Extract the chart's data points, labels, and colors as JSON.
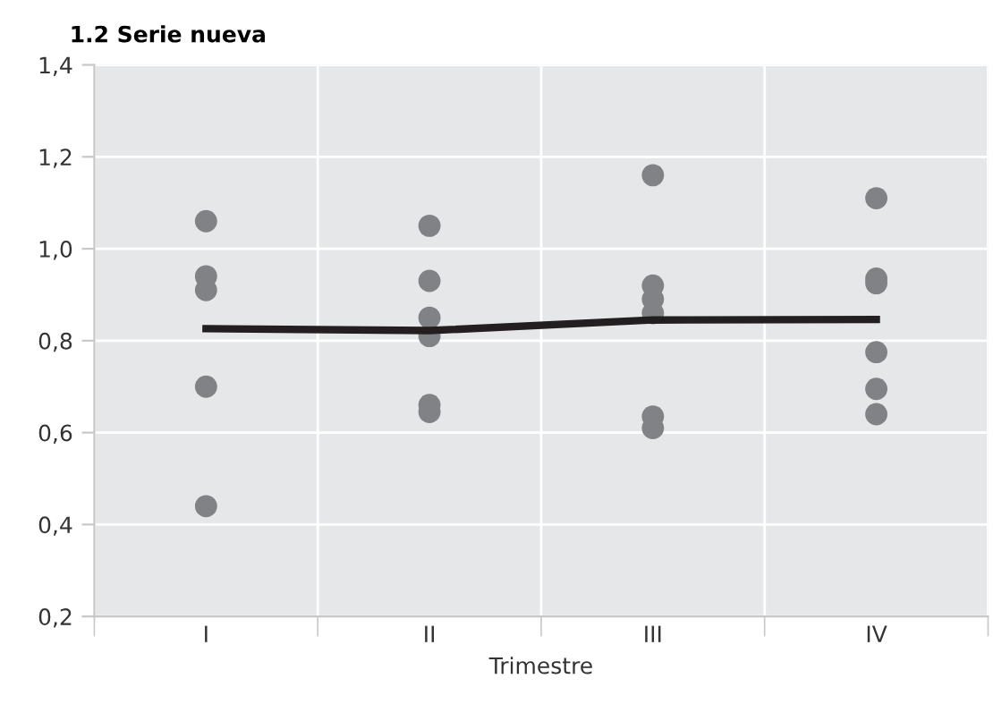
{
  "chart_data": {
    "type": "scatter",
    "title": "1.2 Serie nueva",
    "xlabel": "Trimestre",
    "categories": [
      "I",
      "II",
      "III",
      "IV"
    ],
    "series": [
      {
        "marker": "circle",
        "color": "#808285",
        "x": [
          "I",
          "I",
          "I",
          "I",
          "I",
          "II",
          "II",
          "II",
          "II",
          "II",
          "II",
          "III",
          "III",
          "III",
          "III",
          "III",
          "III",
          "IV",
          "IV",
          "IV",
          "IV",
          "IV",
          "IV"
        ],
        "values": [
          1.06,
          0.94,
          0.91,
          0.7,
          0.44,
          1.05,
          0.93,
          0.85,
          0.81,
          0.66,
          0.645,
          1.16,
          0.92,
          0.89,
          0.86,
          0.635,
          0.61,
          1.11,
          0.935,
          0.925,
          0.775,
          0.695,
          0.64
        ]
      },
      {
        "type": "line",
        "color": "#231f20",
        "values": [
          0.826,
          0.822,
          0.845,
          0.846
        ]
      }
    ],
    "ylim": [
      0.2,
      1.4
    ],
    "yticks": [
      {
        "value": 0.2,
        "label": "0,2"
      },
      {
        "value": 0.4,
        "label": "0,4"
      },
      {
        "value": 0.6,
        "label": "0,6"
      },
      {
        "value": 0.8,
        "label": "0,8"
      },
      {
        "value": 1.0,
        "label": "1,0"
      },
      {
        "value": 1.2,
        "label": "1,2"
      },
      {
        "value": 1.4,
        "label": "1,4"
      }
    ],
    "grid": true
  }
}
